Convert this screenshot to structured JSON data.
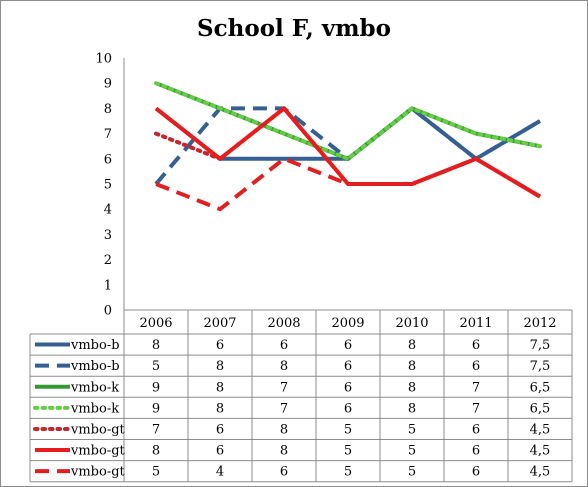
{
  "chart_data": {
    "type": "line",
    "title": "School F, vmbo",
    "categories": [
      "2006",
      "2007",
      "2008",
      "2009",
      "2010",
      "2011",
      "2012"
    ],
    "ylim": [
      0,
      10
    ],
    "yticks": [
      "0",
      "1",
      "2",
      "3",
      "4",
      "5",
      "6",
      "7",
      "8",
      "9",
      "10"
    ],
    "grid": false,
    "legend": "data table below chart",
    "series": [
      {
        "name": "vmbo-b",
        "values": [
          8,
          6,
          6,
          6,
          8,
          6,
          7.5
        ],
        "labels": [
          "8",
          "6",
          "6",
          "6",
          "8",
          "6",
          "7,5"
        ],
        "color": "#365f91",
        "style": "solid"
      },
      {
        "name": "vmbo-b",
        "values": [
          5,
          8,
          8,
          6,
          8,
          6,
          7.5
        ],
        "labels": [
          "5",
          "8",
          "8",
          "6",
          "8",
          "6",
          "7,5"
        ],
        "color": "#365f91",
        "style": "dashed"
      },
      {
        "name": "vmbo-k",
        "values": [
          9,
          8,
          7,
          6,
          8,
          7,
          6.5
        ],
        "labels": [
          "9",
          "8",
          "7",
          "6",
          "8",
          "7",
          "6,5"
        ],
        "color": "#339933",
        "style": "solid"
      },
      {
        "name": "vmbo-k",
        "values": [
          9,
          8,
          7,
          6,
          8,
          7,
          6.5
        ],
        "labels": [
          "9",
          "8",
          "7",
          "6",
          "8",
          "7",
          "6,5"
        ],
        "color": "#66cc44",
        "style": "dotted"
      },
      {
        "name": "vmbo-gt",
        "values": [
          7,
          6,
          8,
          5,
          5,
          6,
          4.5
        ],
        "labels": [
          "7",
          "6",
          "8",
          "5",
          "5",
          "6",
          "4,5"
        ],
        "color": "#c0282d",
        "style": "dotted"
      },
      {
        "name": "vmbo-gt",
        "values": [
          8,
          6,
          8,
          5,
          5,
          6,
          4.5
        ],
        "labels": [
          "8",
          "6",
          "8",
          "5",
          "5",
          "6",
          "4,5"
        ],
        "color": "#e81c1c",
        "style": "solid"
      },
      {
        "name": "vmbo-gt",
        "values": [
          5,
          4,
          6,
          5,
          5,
          6,
          4.5
        ],
        "labels": [
          "5",
          "4",
          "6",
          "5",
          "5",
          "6",
          "4,5"
        ],
        "color": "#e02020",
        "style": "dashed"
      }
    ]
  }
}
